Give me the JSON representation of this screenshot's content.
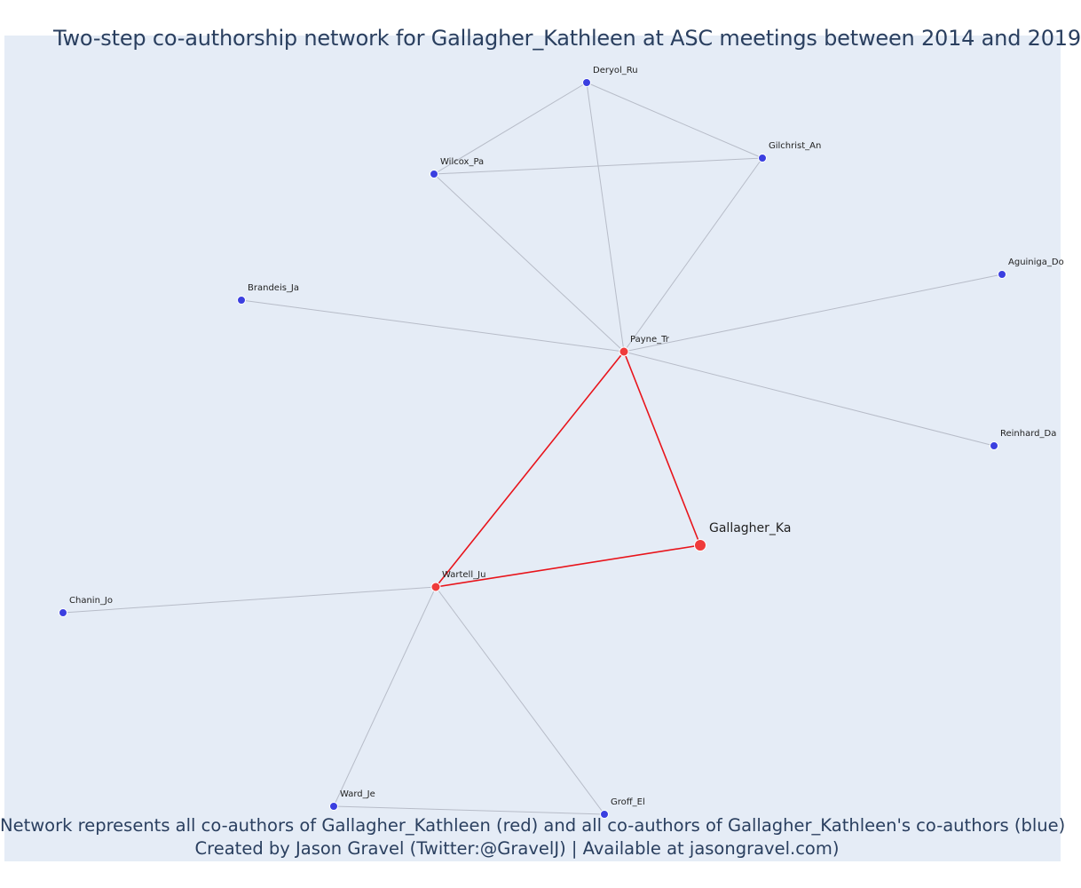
{
  "title": "Two-step co-authorship network for Gallagher_Kathleen at ASC meetings between 2014 and 2019",
  "captions": {
    "line1": "Network represents all co-authors of Gallagher_Kathleen (red) and all co-authors of Gallagher_Kathleen's co-authors (blue)",
    "line2": "Created by Jason Gravel (Twitter:@GravelJ) | Available at jasongravel.com)"
  },
  "colors": {
    "background": "#e5ecf6",
    "red_node": "#ef3b3b",
    "blue_node": "#3b3fe0",
    "red_edge": "#e8141b",
    "gray_edge": "#b7bcc8",
    "text": "#2a3f5f"
  },
  "nodes": [
    {
      "id": "Gallagher_Ka",
      "label": "Gallagher_Ka",
      "group": "focal"
    },
    {
      "id": "Payne_Tr",
      "label": "Payne_Tr",
      "group": "coauthor"
    },
    {
      "id": "Wartell_Ju",
      "label": "Wartell_Ju",
      "group": "coauthor"
    },
    {
      "id": "Deryol_Ru",
      "label": "Deryol_Ru",
      "group": "second"
    },
    {
      "id": "Gilchrist_An",
      "label": "Gilchrist_An",
      "group": "second"
    },
    {
      "id": "Wilcox_Pa",
      "label": "Wilcox_Pa",
      "group": "second"
    },
    {
      "id": "Brandeis_Ja",
      "label": "Brandeis_Ja",
      "group": "second"
    },
    {
      "id": "Aguiniga_Do",
      "label": "Aguiniga_Do",
      "group": "second"
    },
    {
      "id": "Reinhard_Da",
      "label": "Reinhard_Da",
      "group": "second"
    },
    {
      "id": "Chanin_Jo",
      "label": "Chanin_Jo",
      "group": "second"
    },
    {
      "id": "Ward_Je",
      "label": "Ward_Je",
      "group": "second"
    },
    {
      "id": "Groff_El",
      "label": "Groff_El",
      "group": "second"
    }
  ],
  "edges": [
    {
      "source": "Gallagher_Ka",
      "target": "Payne_Tr",
      "type": "red"
    },
    {
      "source": "Gallagher_Ka",
      "target": "Wartell_Ju",
      "type": "red"
    },
    {
      "source": "Payne_Tr",
      "target": "Wartell_Ju",
      "type": "red"
    },
    {
      "source": "Payne_Tr",
      "target": "Deryol_Ru",
      "type": "gray"
    },
    {
      "source": "Payne_Tr",
      "target": "Gilchrist_An",
      "type": "gray"
    },
    {
      "source": "Payne_Tr",
      "target": "Wilcox_Pa",
      "type": "gray"
    },
    {
      "source": "Payne_Tr",
      "target": "Brandeis_Ja",
      "type": "gray"
    },
    {
      "source": "Payne_Tr",
      "target": "Aguiniga_Do",
      "type": "gray"
    },
    {
      "source": "Payne_Tr",
      "target": "Reinhard_Da",
      "type": "gray"
    },
    {
      "source": "Deryol_Ru",
      "target": "Wilcox_Pa",
      "type": "gray"
    },
    {
      "source": "Deryol_Ru",
      "target": "Gilchrist_An",
      "type": "gray"
    },
    {
      "source": "Wilcox_Pa",
      "target": "Gilchrist_An",
      "type": "gray"
    },
    {
      "source": "Wartell_Ju",
      "target": "Chanin_Jo",
      "type": "gray"
    },
    {
      "source": "Wartell_Ju",
      "target": "Ward_Je",
      "type": "gray"
    },
    {
      "source": "Wartell_Ju",
      "target": "Groff_El",
      "type": "gray"
    },
    {
      "source": "Ward_Je",
      "target": "Groff_El",
      "type": "gray"
    }
  ]
}
